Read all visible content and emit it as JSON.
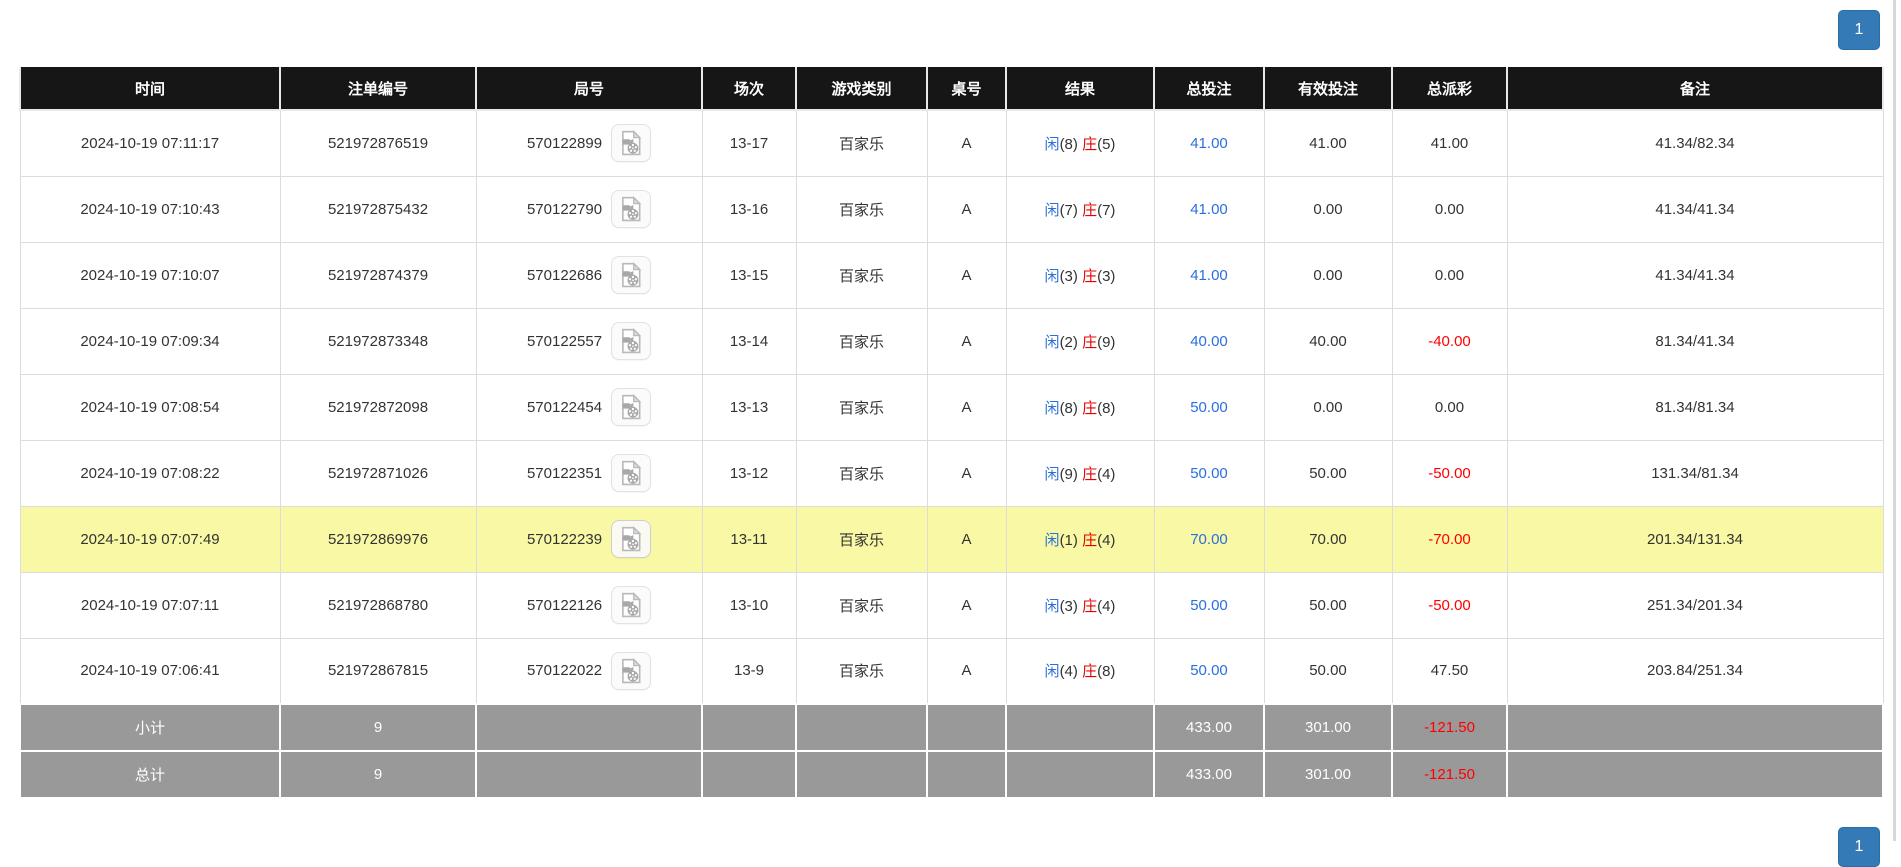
{
  "pagination": {
    "current_page": "1"
  },
  "icons": {
    "round_video": "video-file-icon"
  },
  "colors": {
    "header_black": "#161616",
    "highlight_yellow": "#f8f8a5",
    "summary_gray": "#999999",
    "link_blue": "#2a6fdb",
    "banker_red": "#e60000",
    "negative_red": "#ff0000",
    "pagination_blue": "#337ab7"
  },
  "table": {
    "headers": [
      "时间",
      "注单编号",
      "局号",
      "场次",
      "游戏类别",
      "桌号",
      "结果",
      "总投注",
      "有效投注",
      "总派彩",
      "备注"
    ],
    "result_labels": {
      "player": "闲",
      "banker": "庄"
    },
    "rows": [
      {
        "time": "2024-10-19 07:11:17",
        "bet_no": "521972876519",
        "round_no": "570122899",
        "session": "13-17",
        "game": "百家乐",
        "table": "A",
        "player_pts": "(8)",
        "banker_pts": "(5)",
        "total_bet": "41.00",
        "valid_bet": "41.00",
        "payout": "41.00",
        "payout_neg": false,
        "remark": "41.34/82.34",
        "highlight": false
      },
      {
        "time": "2024-10-19 07:10:43",
        "bet_no": "521972875432",
        "round_no": "570122790",
        "session": "13-16",
        "game": "百家乐",
        "table": "A",
        "player_pts": "(7)",
        "banker_pts": "(7)",
        "total_bet": "41.00",
        "valid_bet": "0.00",
        "payout": "0.00",
        "payout_neg": false,
        "remark": "41.34/41.34",
        "highlight": false
      },
      {
        "time": "2024-10-19 07:10:07",
        "bet_no": "521972874379",
        "round_no": "570122686",
        "session": "13-15",
        "game": "百家乐",
        "table": "A",
        "player_pts": "(3)",
        "banker_pts": "(3)",
        "total_bet": "41.00",
        "valid_bet": "0.00",
        "payout": "0.00",
        "payout_neg": false,
        "remark": "41.34/41.34",
        "highlight": false
      },
      {
        "time": "2024-10-19 07:09:34",
        "bet_no": "521972873348",
        "round_no": "570122557",
        "session": "13-14",
        "game": "百家乐",
        "table": "A",
        "player_pts": "(2)",
        "banker_pts": "(9)",
        "total_bet": "40.00",
        "valid_bet": "40.00",
        "payout": "-40.00",
        "payout_neg": true,
        "remark": "81.34/41.34",
        "highlight": false
      },
      {
        "time": "2024-10-19 07:08:54",
        "bet_no": "521972872098",
        "round_no": "570122454",
        "session": "13-13",
        "game": "百家乐",
        "table": "A",
        "player_pts": "(8)",
        "banker_pts": "(8)",
        "total_bet": "50.00",
        "valid_bet": "0.00",
        "payout": "0.00",
        "payout_neg": false,
        "remark": "81.34/81.34",
        "highlight": false
      },
      {
        "time": "2024-10-19 07:08:22",
        "bet_no": "521972871026",
        "round_no": "570122351",
        "session": "13-12",
        "game": "百家乐",
        "table": "A",
        "player_pts": "(9)",
        "banker_pts": "(4)",
        "total_bet": "50.00",
        "valid_bet": "50.00",
        "payout": "-50.00",
        "payout_neg": true,
        "remark": "131.34/81.34",
        "highlight": false
      },
      {
        "time": "2024-10-19 07:07:49",
        "bet_no": "521972869976",
        "round_no": "570122239",
        "session": "13-11",
        "game": "百家乐",
        "table": "A",
        "player_pts": "(1)",
        "banker_pts": "(4)",
        "total_bet": "70.00",
        "valid_bet": "70.00",
        "payout": "-70.00",
        "payout_neg": true,
        "remark": "201.34/131.34",
        "highlight": true
      },
      {
        "time": "2024-10-19 07:07:11",
        "bet_no": "521972868780",
        "round_no": "570122126",
        "session": "13-10",
        "game": "百家乐",
        "table": "A",
        "player_pts": "(3)",
        "banker_pts": "(4)",
        "total_bet": "50.00",
        "valid_bet": "50.00",
        "payout": "-50.00",
        "payout_neg": true,
        "remark": "251.34/201.34",
        "highlight": false
      },
      {
        "time": "2024-10-19 07:06:41",
        "bet_no": "521972867815",
        "round_no": "570122022",
        "session": "13-9",
        "game": "百家乐",
        "table": "A",
        "player_pts": "(4)",
        "banker_pts": "(8)",
        "total_bet": "50.00",
        "valid_bet": "50.00",
        "payout": "47.50",
        "payout_neg": false,
        "remark": "203.84/251.34",
        "highlight": false
      }
    ],
    "subtotal": {
      "label": "小计",
      "count": "9",
      "total_bet": "433.00",
      "valid_bet": "301.00",
      "payout": "-121.50"
    },
    "grand_total": {
      "label": "总计",
      "count": "9",
      "total_bet": "433.00",
      "valid_bet": "301.00",
      "payout": "-121.50"
    }
  }
}
